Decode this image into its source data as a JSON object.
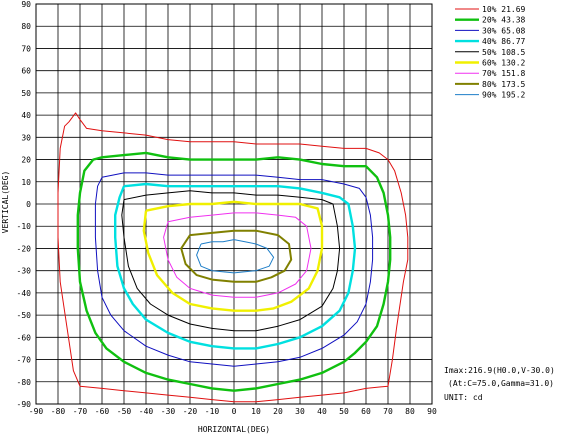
{
  "chart_data": {
    "type": "line",
    "subtype": "isocandela-contour",
    "xlabel": "HORIZONTAL(DEG)",
    "ylabel": "VERTICAL(DEG)",
    "xlim": [
      -90,
      90
    ],
    "ylim": [
      -90,
      90
    ],
    "xticks": [
      -90,
      -80,
      -70,
      -60,
      -50,
      -40,
      -30,
      -20,
      -10,
      0,
      10,
      20,
      30,
      40,
      50,
      60,
      70,
      80,
      90
    ],
    "yticks": [
      90,
      80,
      70,
      60,
      50,
      40,
      30,
      20,
      10,
      0,
      -10,
      -20,
      -30,
      -40,
      -50,
      -60,
      -70,
      -80,
      -90
    ],
    "xtick_labels": [
      "-90",
      "-80",
      "-70",
      "-60",
      "-50",
      "-40",
      "-30",
      "-20",
      "-10",
      "0",
      "10",
      "20",
      "30",
      "40",
      "50",
      "60",
      "70",
      "80",
      "90"
    ],
    "ytick_labels": [
      "90",
      "80",
      "70",
      "60",
      "50",
      "40",
      "30",
      "20",
      "10",
      "0",
      "-10",
      "-20",
      "-30",
      "-40",
      "-50",
      "-60",
      "-70",
      "-80",
      "-90"
    ],
    "grid": true,
    "legend_position": "top-right",
    "series": [
      {
        "name": "10% 21.69",
        "color": "#e01010",
        "stroke": 1,
        "points": [
          [
            -75,
            37
          ],
          [
            -72,
            41
          ],
          [
            -70,
            38
          ],
          [
            -67,
            34
          ],
          [
            -60,
            33
          ],
          [
            -50,
            32
          ],
          [
            -40,
            31
          ],
          [
            -30,
            29
          ],
          [
            -20,
            28
          ],
          [
            -10,
            28
          ],
          [
            0,
            28
          ],
          [
            10,
            27
          ],
          [
            20,
            27
          ],
          [
            30,
            27
          ],
          [
            40,
            26
          ],
          [
            50,
            25
          ],
          [
            60,
            25
          ],
          [
            66,
            23
          ],
          [
            70,
            20
          ],
          [
            73,
            15
          ],
          [
            76,
            5
          ],
          [
            78,
            -5
          ],
          [
            79,
            -15
          ],
          [
            79,
            -25
          ],
          [
            77,
            -35
          ],
          [
            74,
            -55
          ],
          [
            72,
            -70
          ],
          [
            70,
            -82
          ],
          [
            60,
            -83
          ],
          [
            50,
            -85
          ],
          [
            40,
            -86
          ],
          [
            30,
            -87
          ],
          [
            20,
            -88
          ],
          [
            10,
            -89
          ],
          [
            0,
            -89
          ],
          [
            -10,
            -88
          ],
          [
            -20,
            -87
          ],
          [
            -30,
            -86
          ],
          [
            -40,
            -85
          ],
          [
            -50,
            -84
          ],
          [
            -60,
            -83
          ],
          [
            -70,
            -82
          ],
          [
            -73,
            -75
          ],
          [
            -76,
            -55
          ],
          [
            -79,
            -35
          ],
          [
            -80,
            -15
          ],
          [
            -80,
            5
          ],
          [
            -79,
            25
          ],
          [
            -77,
            35
          ],
          [
            -75,
            37
          ]
        ]
      },
      {
        "name": "20% 43.38",
        "color": "#10c010",
        "stroke": 2.4,
        "points": [
          [
            -60,
            21
          ],
          [
            -50,
            22
          ],
          [
            -40,
            23
          ],
          [
            -30,
            21
          ],
          [
            -20,
            20
          ],
          [
            -10,
            20
          ],
          [
            0,
            20
          ],
          [
            10,
            20
          ],
          [
            20,
            21
          ],
          [
            30,
            20
          ],
          [
            40,
            18
          ],
          [
            50,
            17
          ],
          [
            60,
            17
          ],
          [
            65,
            12
          ],
          [
            68,
            5
          ],
          [
            70,
            -5
          ],
          [
            71,
            -15
          ],
          [
            71,
            -25
          ],
          [
            70,
            -35
          ],
          [
            68,
            -45
          ],
          [
            65,
            -55
          ],
          [
            60,
            -62
          ],
          [
            55,
            -67
          ],
          [
            50,
            -71
          ],
          [
            40,
            -76
          ],
          [
            30,
            -79
          ],
          [
            20,
            -81
          ],
          [
            10,
            -83
          ],
          [
            0,
            -84
          ],
          [
            -10,
            -83
          ],
          [
            -20,
            -81
          ],
          [
            -30,
            -79
          ],
          [
            -40,
            -76
          ],
          [
            -50,
            -71
          ],
          [
            -58,
            -65
          ],
          [
            -63,
            -58
          ],
          [
            -67,
            -48
          ],
          [
            -70,
            -35
          ],
          [
            -71,
            -20
          ],
          [
            -71,
            -5
          ],
          [
            -70,
            5
          ],
          [
            -68,
            15
          ],
          [
            -64,
            20
          ],
          [
            -60,
            21
          ]
        ]
      },
      {
        "name": "30% 65.08",
        "color": "#1010c0",
        "stroke": 1,
        "points": [
          [
            -60,
            12
          ],
          [
            -50,
            14
          ],
          [
            -40,
            14
          ],
          [
            -30,
            13
          ],
          [
            -20,
            13
          ],
          [
            -10,
            13
          ],
          [
            0,
            13
          ],
          [
            10,
            13
          ],
          [
            20,
            12
          ],
          [
            30,
            11
          ],
          [
            40,
            11
          ],
          [
            50,
            9
          ],
          [
            57,
            7
          ],
          [
            60,
            3
          ],
          [
            62,
            -5
          ],
          [
            63,
            -15
          ],
          [
            63,
            -25
          ],
          [
            62,
            -35
          ],
          [
            60,
            -45
          ],
          [
            56,
            -53
          ],
          [
            50,
            -59
          ],
          [
            40,
            -65
          ],
          [
            30,
            -69
          ],
          [
            20,
            -71
          ],
          [
            10,
            -72
          ],
          [
            0,
            -73
          ],
          [
            -10,
            -72
          ],
          [
            -20,
            -71
          ],
          [
            -30,
            -68
          ],
          [
            -40,
            -64
          ],
          [
            -50,
            -57
          ],
          [
            -56,
            -50
          ],
          [
            -60,
            -42
          ],
          [
            -62,
            -30
          ],
          [
            -63,
            -15
          ],
          [
            -63,
            0
          ],
          [
            -62,
            8
          ],
          [
            -60,
            12
          ]
        ]
      },
      {
        "name": "40% 86.77",
        "color": "#00e0e0",
        "stroke": 2.4,
        "points": [
          [
            -50,
            8
          ],
          [
            -40,
            9
          ],
          [
            -30,
            8
          ],
          [
            -20,
            8
          ],
          [
            -10,
            8
          ],
          [
            0,
            8
          ],
          [
            10,
            8
          ],
          [
            20,
            8
          ],
          [
            30,
            7
          ],
          [
            40,
            5
          ],
          [
            48,
            3
          ],
          [
            52,
            0
          ],
          [
            54,
            -10
          ],
          [
            55,
            -20
          ],
          [
            54,
            -30
          ],
          [
            52,
            -40
          ],
          [
            48,
            -48
          ],
          [
            40,
            -55
          ],
          [
            30,
            -60
          ],
          [
            20,
            -63
          ],
          [
            10,
            -65
          ],
          [
            0,
            -65
          ],
          [
            -10,
            -64
          ],
          [
            -20,
            -62
          ],
          [
            -30,
            -58
          ],
          [
            -40,
            -52
          ],
          [
            -46,
            -45
          ],
          [
            -50,
            -38
          ],
          [
            -53,
            -28
          ],
          [
            -54,
            -15
          ],
          [
            -54,
            -5
          ],
          [
            -52,
            3
          ],
          [
            -50,
            8
          ]
        ]
      },
      {
        "name": "50% 108.5",
        "color": "#000000",
        "stroke": 1,
        "points": [
          [
            -50,
            2
          ],
          [
            -40,
            4
          ],
          [
            -30,
            5
          ],
          [
            -20,
            6
          ],
          [
            -10,
            5
          ],
          [
            0,
            5
          ],
          [
            10,
            4
          ],
          [
            20,
            4
          ],
          [
            30,
            3
          ],
          [
            40,
            2
          ],
          [
            45,
            0
          ],
          [
            47,
            -10
          ],
          [
            48,
            -20
          ],
          [
            47,
            -30
          ],
          [
            45,
            -38
          ],
          [
            40,
            -46
          ],
          [
            30,
            -52
          ],
          [
            20,
            -55
          ],
          [
            10,
            -57
          ],
          [
            0,
            -57
          ],
          [
            -10,
            -56
          ],
          [
            -20,
            -54
          ],
          [
            -30,
            -50
          ],
          [
            -38,
            -45
          ],
          [
            -44,
            -38
          ],
          [
            -48,
            -28
          ],
          [
            -50,
            -15
          ],
          [
            -51,
            -5
          ],
          [
            -50,
            2
          ]
        ]
      },
      {
        "name": "60% 130.2",
        "color": "#f0f000",
        "stroke": 2.4,
        "points": [
          [
            -40,
            -3
          ],
          [
            -30,
            -1
          ],
          [
            -20,
            0
          ],
          [
            -10,
            0
          ],
          [
            0,
            1
          ],
          [
            10,
            0
          ],
          [
            20,
            0
          ],
          [
            30,
            0
          ],
          [
            38,
            -2
          ],
          [
            40,
            -10
          ],
          [
            40,
            -20
          ],
          [
            38,
            -30
          ],
          [
            34,
            -38
          ],
          [
            26,
            -44
          ],
          [
            18,
            -47
          ],
          [
            10,
            -48
          ],
          [
            0,
            -48
          ],
          [
            -10,
            -47
          ],
          [
            -20,
            -45
          ],
          [
            -28,
            -40
          ],
          [
            -35,
            -32
          ],
          [
            -39,
            -22
          ],
          [
            -41,
            -12
          ],
          [
            -40,
            -3
          ]
        ]
      },
      {
        "name": "70% 151.8",
        "color": "#f030f0",
        "stroke": 1,
        "points": [
          [
            -30,
            -8
          ],
          [
            -20,
            -6
          ],
          [
            -10,
            -5
          ],
          [
            0,
            -4
          ],
          [
            10,
            -4
          ],
          [
            20,
            -5
          ],
          [
            28,
            -6
          ],
          [
            33,
            -10
          ],
          [
            35,
            -20
          ],
          [
            33,
            -30
          ],
          [
            28,
            -36
          ],
          [
            20,
            -40
          ],
          [
            10,
            -42
          ],
          [
            0,
            -42
          ],
          [
            -10,
            -41
          ],
          [
            -20,
            -38
          ],
          [
            -26,
            -33
          ],
          [
            -30,
            -25
          ],
          [
            -32,
            -15
          ],
          [
            -30,
            -8
          ]
        ]
      },
      {
        "name": "80% 173.5",
        "color": "#808000",
        "stroke": 2,
        "points": [
          [
            -20,
            -14
          ],
          [
            -10,
            -13
          ],
          [
            0,
            -12
          ],
          [
            10,
            -12
          ],
          [
            20,
            -14
          ],
          [
            25,
            -18
          ],
          [
            26,
            -25
          ],
          [
            23,
            -30
          ],
          [
            17,
            -33
          ],
          [
            10,
            -35
          ],
          [
            0,
            -35
          ],
          [
            -10,
            -34
          ],
          [
            -17,
            -32
          ],
          [
            -22,
            -27
          ],
          [
            -24,
            -20
          ],
          [
            -20,
            -14
          ]
        ]
      },
      {
        "name": "90% 195.2",
        "color": "#1e7ec8",
        "stroke": 1,
        "points": [
          [
            -15,
            -18
          ],
          [
            -10,
            -17
          ],
          [
            -5,
            -17
          ],
          [
            0,
            -16
          ],
          [
            5,
            -17
          ],
          [
            10,
            -18
          ],
          [
            15,
            -20
          ],
          [
            18,
            -24
          ],
          [
            16,
            -28
          ],
          [
            10,
            -30
          ],
          [
            0,
            -31
          ],
          [
            -10,
            -30
          ],
          [
            -15,
            -28
          ],
          [
            -17,
            -23
          ],
          [
            -15,
            -18
          ]
        ]
      }
    ],
    "info": {
      "imax_line": "Imax:216.9(H0.0,V-30.0)",
      "at_line": "(At:C=75.0,Gamma=31.0)",
      "unit_line": "UNIT: cd"
    }
  }
}
